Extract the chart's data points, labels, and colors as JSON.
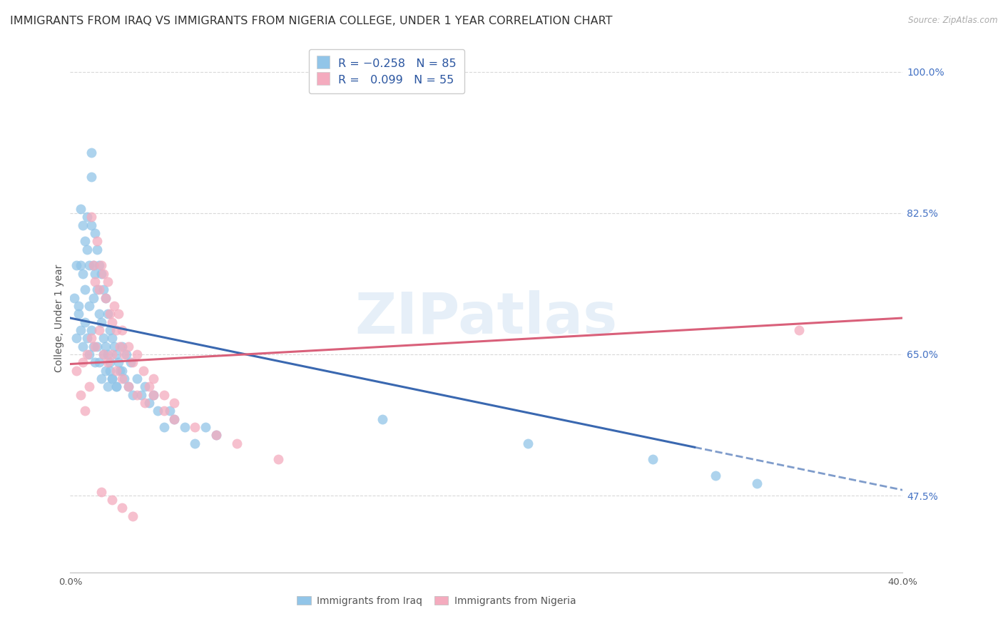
{
  "title": "IMMIGRANTS FROM IRAQ VS IMMIGRANTS FROM NIGERIA COLLEGE, UNDER 1 YEAR CORRELATION CHART",
  "source": "Source: ZipAtlas.com",
  "ylabel": "College, Under 1 year",
  "xlim": [
    0.0,
    0.4
  ],
  "ylim": [
    0.38,
    1.01
  ],
  "yticks_right": [
    1.0,
    0.825,
    0.65,
    0.475
  ],
  "ytick_labels_right": [
    "100.0%",
    "82.5%",
    "65.0%",
    "47.5%"
  ],
  "iraq_color": "#92C5E8",
  "nigeria_color": "#F4ABBE",
  "iraq_line_color": "#3A68B0",
  "nigeria_line_color": "#D9607A",
  "watermark": "ZIPatlas",
  "background_color": "#ffffff",
  "grid_color": "#d0d0d0",
  "title_fontsize": 11.5,
  "axis_label_fontsize": 10,
  "tick_fontsize": 9.5,
  "iraq_scatter_x": [
    0.002,
    0.003,
    0.004,
    0.005,
    0.005,
    0.006,
    0.006,
    0.007,
    0.007,
    0.008,
    0.008,
    0.009,
    0.009,
    0.01,
    0.01,
    0.01,
    0.011,
    0.011,
    0.012,
    0.012,
    0.013,
    0.013,
    0.014,
    0.014,
    0.015,
    0.015,
    0.016,
    0.016,
    0.017,
    0.017,
    0.018,
    0.018,
    0.019,
    0.019,
    0.02,
    0.02,
    0.021,
    0.022,
    0.022,
    0.023,
    0.024,
    0.025,
    0.026,
    0.027,
    0.028,
    0.029,
    0.03,
    0.032,
    0.034,
    0.036,
    0.038,
    0.04,
    0.042,
    0.045,
    0.048,
    0.05,
    0.055,
    0.06,
    0.065,
    0.07,
    0.003,
    0.004,
    0.005,
    0.006,
    0.007,
    0.008,
    0.009,
    0.01,
    0.011,
    0.012,
    0.013,
    0.014,
    0.015,
    0.016,
    0.017,
    0.018,
    0.019,
    0.02,
    0.022,
    0.025,
    0.15,
    0.22,
    0.28,
    0.31,
    0.33
  ],
  "iraq_scatter_y": [
    0.72,
    0.76,
    0.71,
    0.83,
    0.76,
    0.81,
    0.75,
    0.79,
    0.73,
    0.82,
    0.78,
    0.76,
    0.71,
    0.9,
    0.87,
    0.81,
    0.76,
    0.72,
    0.8,
    0.75,
    0.78,
    0.73,
    0.76,
    0.7,
    0.75,
    0.69,
    0.73,
    0.67,
    0.72,
    0.66,
    0.7,
    0.65,
    0.68,
    0.63,
    0.67,
    0.62,
    0.66,
    0.65,
    0.61,
    0.64,
    0.63,
    0.66,
    0.62,
    0.65,
    0.61,
    0.64,
    0.6,
    0.62,
    0.6,
    0.61,
    0.59,
    0.6,
    0.58,
    0.56,
    0.58,
    0.57,
    0.56,
    0.54,
    0.56,
    0.55,
    0.67,
    0.7,
    0.68,
    0.66,
    0.69,
    0.67,
    0.65,
    0.68,
    0.66,
    0.64,
    0.66,
    0.64,
    0.62,
    0.65,
    0.63,
    0.61,
    0.64,
    0.62,
    0.61,
    0.63,
    0.57,
    0.54,
    0.52,
    0.5,
    0.49
  ],
  "nigeria_scatter_x": [
    0.003,
    0.005,
    0.007,
    0.009,
    0.01,
    0.011,
    0.012,
    0.013,
    0.014,
    0.015,
    0.016,
    0.017,
    0.018,
    0.019,
    0.02,
    0.021,
    0.022,
    0.023,
    0.024,
    0.025,
    0.026,
    0.028,
    0.03,
    0.032,
    0.035,
    0.038,
    0.04,
    0.045,
    0.05,
    0.006,
    0.008,
    0.01,
    0.012,
    0.014,
    0.016,
    0.018,
    0.02,
    0.022,
    0.025,
    0.028,
    0.032,
    0.036,
    0.04,
    0.045,
    0.05,
    0.06,
    0.07,
    0.08,
    0.1,
    0.015,
    0.02,
    0.025,
    0.03,
    0.35
  ],
  "nigeria_scatter_y": [
    0.63,
    0.6,
    0.58,
    0.61,
    0.82,
    0.76,
    0.74,
    0.79,
    0.73,
    0.76,
    0.75,
    0.72,
    0.74,
    0.7,
    0.69,
    0.71,
    0.68,
    0.7,
    0.66,
    0.68,
    0.65,
    0.66,
    0.64,
    0.65,
    0.63,
    0.61,
    0.62,
    0.6,
    0.59,
    0.64,
    0.65,
    0.67,
    0.66,
    0.68,
    0.65,
    0.64,
    0.65,
    0.63,
    0.62,
    0.61,
    0.6,
    0.59,
    0.6,
    0.58,
    0.57,
    0.56,
    0.55,
    0.54,
    0.52,
    0.48,
    0.47,
    0.46,
    0.45,
    0.68
  ],
  "iraq_line_x0": 0.0,
  "iraq_line_y0": 0.695,
  "iraq_line_x1": 0.3,
  "iraq_line_y1": 0.535,
  "iraq_line_dash_x0": 0.3,
  "iraq_line_dash_y0": 0.535,
  "iraq_line_dash_x1": 0.4,
  "iraq_line_dash_y1": 0.482,
  "nigeria_line_x0": 0.0,
  "nigeria_line_y0": 0.638,
  "nigeria_line_x1": 0.4,
  "nigeria_line_y1": 0.695
}
